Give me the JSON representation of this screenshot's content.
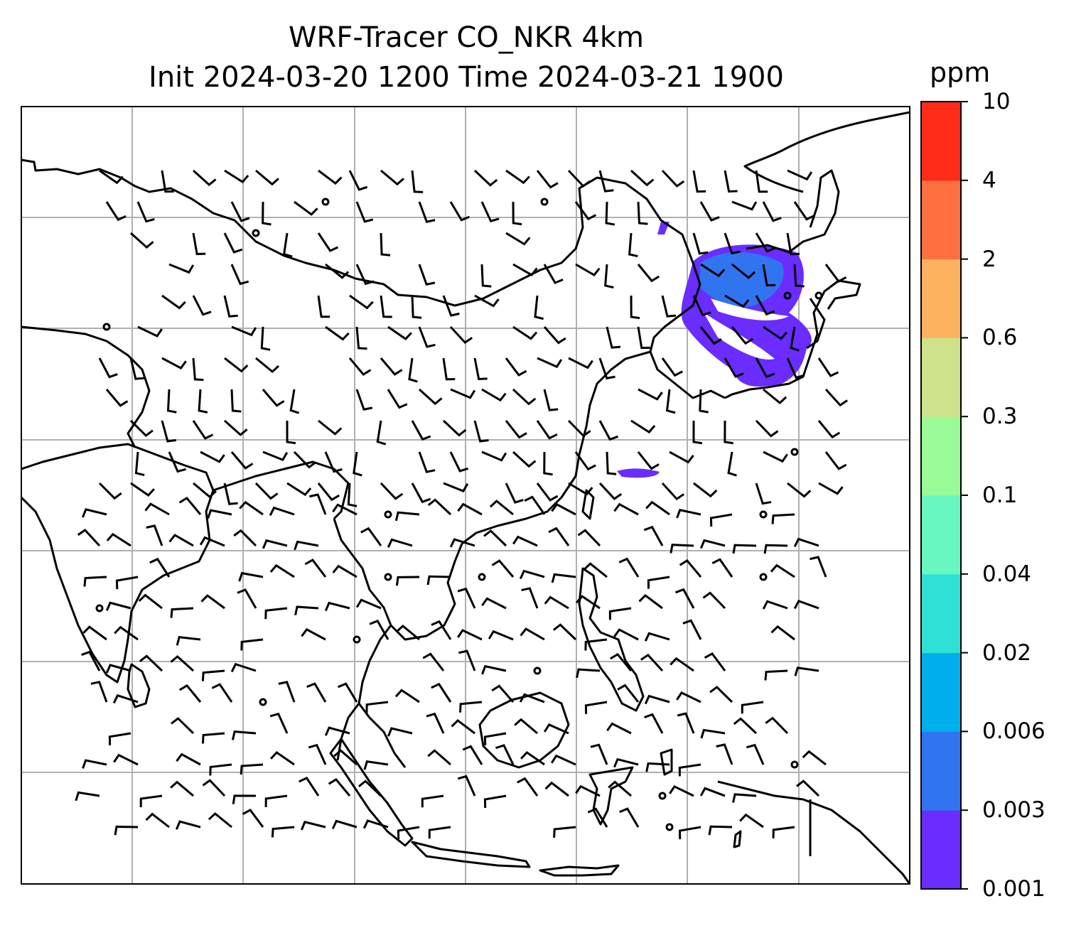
{
  "title": {
    "line1": "WRF-Tracer CO_NKR 4km",
    "line2": "Init 2024-03-20 1200 Time 2024-03-21 1900"
  },
  "colorbar": {
    "unit": "ppm",
    "ticks": [
      "0.001",
      "0.003",
      "0.006",
      "0.02",
      "0.04",
      "0.1",
      "0.3",
      "0.6",
      "2",
      "4",
      "10"
    ],
    "colors": [
      "#6a2cff",
      "#3174f0",
      "#00b0ec",
      "#2fe0d6",
      "#68f7c0",
      "#98fb98",
      "#cde28a",
      "#fdb262",
      "#ff7040",
      "#ff2a18"
    ]
  },
  "map": {
    "coastline_color": "#000000",
    "gridline_color": "#b0b0b0",
    "plume_color": "#6a2cff",
    "plume_core_color": "#3174f0",
    "legend": ""
  }
}
